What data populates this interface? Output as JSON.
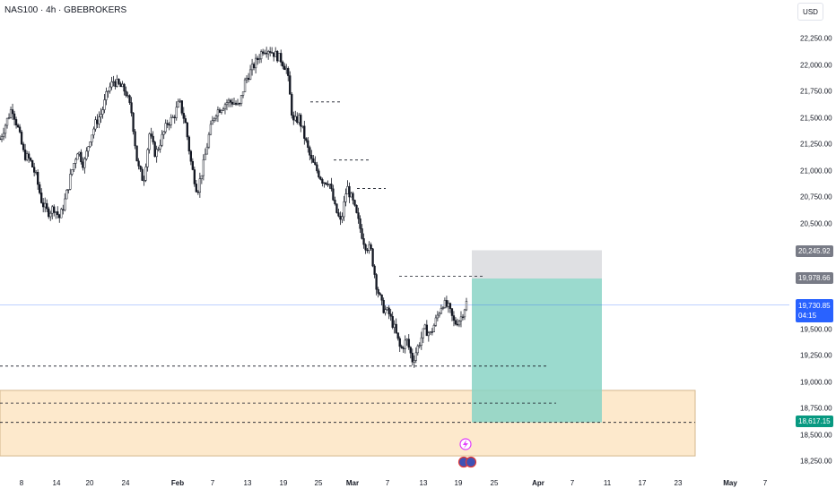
{
  "header": {
    "symbol_title": "NAS100 · 4h · GBEBROKERS",
    "currency_label": "USD"
  },
  "price_badges": {
    "upper_target": "20,245.92",
    "entry": "19,978.66",
    "current": "19,730.85",
    "current_timer": "04:15",
    "stop": "18,617.15"
  },
  "colors": {
    "background": "#ffffff",
    "candle": "#131722",
    "current_price_line": "#2962ff",
    "current_badge": "#2962ff",
    "gray_badge": "#787b86",
    "stop_badge": "#089981",
    "profit_zone": "#89d4c6",
    "loss_zone": "#dfe0e3",
    "demand_zone_fill": "#fde9cc",
    "demand_zone_border": "#d4b78d",
    "dash_line": "#131722"
  },
  "chart_data": {
    "type": "candlestick",
    "symbol": "NAS100",
    "interval": "4h",
    "currency": "USD",
    "ylim": [
      18150,
      22380
    ],
    "y_ticks": [
      "22,250.00",
      "22,000.00",
      "21,750.00",
      "21,500.00",
      "21,250.00",
      "21,000.00",
      "20,750.00",
      "20,500.00",
      "20,250.00",
      "20,000.00",
      "19,750.00",
      "19,500.00",
      "19,250.00",
      "19,000.00",
      "18,750.00",
      "18,500.00",
      "18,250.00"
    ],
    "y_tick_values": [
      22250,
      22000,
      21750,
      21500,
      21250,
      21000,
      20750,
      20500,
      20250,
      20000,
      19750,
      19500,
      19250,
      19000,
      18750,
      18500,
      18250
    ],
    "x_ticks": [
      {
        "label": "8",
        "bold": false
      },
      {
        "label": "14",
        "bold": false
      },
      {
        "label": "20",
        "bold": false
      },
      {
        "label": "24",
        "bold": false
      },
      {
        "label": "Feb",
        "bold": true
      },
      {
        "label": "7",
        "bold": false
      },
      {
        "label": "13",
        "bold": false
      },
      {
        "label": "19",
        "bold": false
      },
      {
        "label": "25",
        "bold": false
      },
      {
        "label": "Mar",
        "bold": true
      },
      {
        "label": "7",
        "bold": false
      },
      {
        "label": "13",
        "bold": false
      },
      {
        "label": "19",
        "bold": false
      },
      {
        "label": "25",
        "bold": false
      },
      {
        "label": "Apr",
        "bold": true
      },
      {
        "label": "7",
        "bold": false
      },
      {
        "label": "11",
        "bold": false
      },
      {
        "label": "17",
        "bold": false
      },
      {
        "label": "23",
        "bold": false
      },
      {
        "label": "May",
        "bold": true
      },
      {
        "label": "7",
        "bold": false
      }
    ],
    "close_path": [
      21300,
      21450,
      21600,
      21400,
      21150,
      21100,
      20950,
      20700,
      20600,
      20650,
      20550,
      20750,
      21000,
      21200,
      21050,
      21300,
      21450,
      21550,
      21750,
      21850,
      21800,
      21750,
      21550,
      21050,
      20900,
      21350,
      21150,
      21300,
      21450,
      21500,
      21650,
      21450,
      21050,
      20800,
      21050,
      21350,
      21550,
      21600,
      21650,
      21650,
      21600,
      21850,
      21950,
      22050,
      22150,
      22150,
      22100,
      22050,
      21950,
      21450,
      21500,
      21300,
      21100,
      21000,
      20900,
      20900,
      20650,
      20500,
      20850,
      20700,
      20500,
      20300,
      20250,
      19900,
      19700,
      19650,
      19500,
      19300,
      19400,
      19200,
      19350,
      19500,
      19450,
      19600,
      19750,
      19700,
      19550,
      19600,
      19750
    ],
    "current_price": 19730.85,
    "entry_price": 19978.66,
    "target_price": 20245.92,
    "stop_price": 18617.15,
    "demand_zone": [
      18300,
      18920
    ],
    "levels": [
      21650,
      21100,
      20830,
      20000,
      19150,
      18800,
      18617
    ]
  }
}
